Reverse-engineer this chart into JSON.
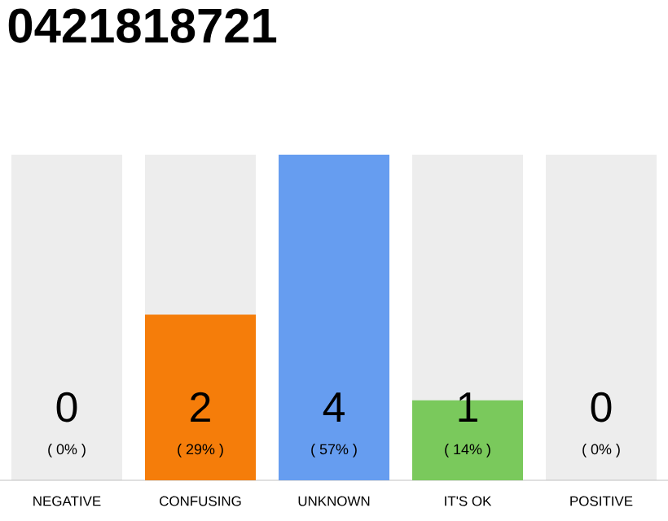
{
  "chart_data": {
    "type": "bar",
    "title": "0421818721",
    "categories": [
      "NEGATIVE",
      "CONFUSING",
      "UNKNOWN",
      "IT'S OK",
      "POSITIVE"
    ],
    "values": [
      0,
      29,
      57,
      14,
      0
    ],
    "colors": [
      "#e05a4f",
      "#f57d0a",
      "#669df0",
      "#7ac95c",
      "#4caf50"
    ],
    "value_labels": [
      "( 0% )",
      "( 29% )",
      "( 57% )",
      "( 14% )",
      "( 0% )"
    ],
    "annotations": [
      "0",
      "2",
      "4",
      "1",
      "0"
    ],
    "bands": [
      {
        "axis": "x",
        "from": "NEGATIVE",
        "to": "NEGATIVE",
        "color": "#ededed"
      },
      {
        "axis": "x",
        "from": "CONFUSING",
        "to": "CONFUSING",
        "color": "#ededed"
      },
      {
        "axis": "x",
        "from": "IT'S OK",
        "to": "IT'S OK",
        "color": "#ededed"
      },
      {
        "axis": "x",
        "from": "POSITIVE",
        "to": "POSITIVE",
        "color": "#ededed"
      }
    ]
  }
}
